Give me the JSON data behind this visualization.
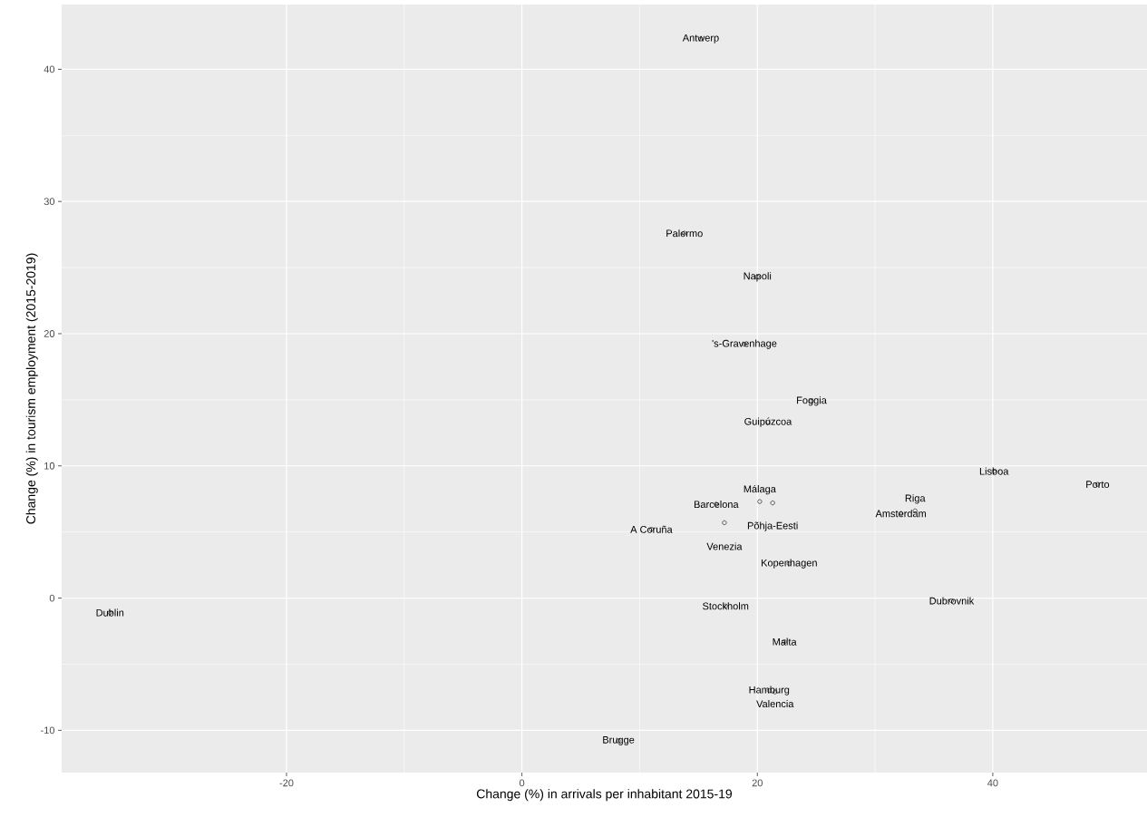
{
  "chart_data": {
    "type": "scatter",
    "xlabel": "Change (%) in arrivals per inhabitant 2015-19",
    "ylabel": "Change (%) in tourism employment (2015-2019)",
    "xlim": [
      -39.1,
      53.1
    ],
    "ylim": [
      -13.2,
      44.9
    ],
    "xticks": [
      -20,
      0,
      20,
      40
    ],
    "yticks": [
      -10,
      0,
      10,
      20,
      30,
      40
    ],
    "grid": true,
    "marker": "circle",
    "series": [
      {
        "name": "Antwerp",
        "color": "#000000",
        "x": [
          15.2
        ],
        "values": [
          42.3
        ]
      },
      {
        "name": "Palermo",
        "color": "#000000",
        "x": [
          13.8
        ],
        "values": [
          27.6
        ]
      },
      {
        "name": "Napoli",
        "color": "#000000",
        "x": [
          20.0
        ],
        "values": [
          24.3
        ]
      },
      {
        "name": "'s-Gravenhage",
        "color": "#000000",
        "x": [
          18.9
        ],
        "values": [
          19.2
        ]
      },
      {
        "name": "Foggia",
        "color": "#000000",
        "x": [
          24.6
        ],
        "values": [
          14.9
        ]
      },
      {
        "name": "Guipúzcoa",
        "color": "#000000",
        "x": [
          20.9
        ],
        "values": [
          13.3
        ]
      },
      {
        "name": "Lisboa",
        "color": "#000000",
        "x": [
          40.1
        ],
        "values": [
          9.6
        ]
      },
      {
        "name": "Porto",
        "color": "#000000",
        "x": [
          48.9
        ],
        "values": [
          8.6
        ]
      },
      {
        "name": "Barcelona",
        "color": "#000000",
        "x": [
          16.5
        ],
        "values": [
          7.1
        ]
      },
      {
        "name": "Málaga",
        "color": "#000000",
        "x": [
          20.2
        ],
        "values": [
          7.3
        ]
      },
      {
        "name": "Põhja-Eesti",
        "color": "#000000",
        "x": [
          21.3
        ],
        "values": [
          7.2
        ]
      },
      {
        "name": "Venezia",
        "color": "#000000",
        "x": [
          17.2
        ],
        "values": [
          5.7
        ]
      },
      {
        "name": "A Coruña",
        "color": "#000000",
        "x": [
          11.0
        ],
        "values": [
          5.2
        ]
      },
      {
        "name": "Amsterdam",
        "color": "#000000",
        "x": [
          32.2
        ],
        "values": [
          6.4
        ]
      },
      {
        "name": "Riga",
        "color": "#000000",
        "x": [
          33.4
        ],
        "values": [
          6.6
        ]
      },
      {
        "name": "Kopenhagen",
        "color": "#000000",
        "x": [
          22.7
        ],
        "values": [
          2.6
        ]
      },
      {
        "name": "Dubrovnik",
        "color": "#000000",
        "x": [
          36.5
        ],
        "values": [
          -0.2
        ]
      },
      {
        "name": "Stockholm",
        "color": "#000000",
        "x": [
          17.3
        ],
        "values": [
          -0.6
        ]
      },
      {
        "name": "Dublin",
        "color": "#000000",
        "x": [
          -35.0
        ],
        "values": [
          -1.1
        ]
      },
      {
        "name": "Malta",
        "color": "#000000",
        "x": [
          22.3
        ],
        "values": [
          -3.3
        ]
      },
      {
        "name": "Hamburg",
        "color": "#000000",
        "x": [
          21.0
        ],
        "values": [
          -7.0
        ]
      },
      {
        "name": "Valencia",
        "color": "#000000",
        "x": [
          21.5
        ],
        "values": [
          -7.1
        ]
      },
      {
        "name": "Brugge",
        "color": "#000000",
        "x": [
          8.2
        ],
        "values": [
          -10.8
        ]
      }
    ]
  }
}
